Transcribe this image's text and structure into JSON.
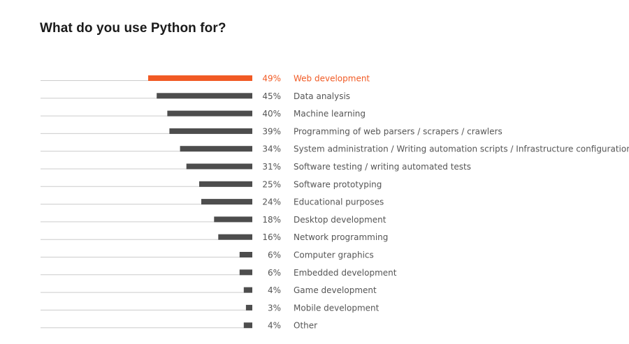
{
  "chart_data": {
    "type": "bar",
    "title": "What do you use Python for?",
    "orientation": "horizontal",
    "value_suffix": "%",
    "highlight_color": "#f15a24",
    "bar_color": "#4d4d4d",
    "label_color": "#555555",
    "baseline_color": "#cccccc",
    "xlim": [
      0,
      49
    ],
    "categories": [
      "Web development",
      "Data analysis",
      "Machine learning",
      "Programming of web parsers / scrapers / crawlers",
      "System administration / Writing automation scripts / Infrastructure configuration",
      "Software testing / writing automated tests",
      "Software prototyping",
      "Educational purposes",
      "Desktop development",
      "Network programming",
      "Computer graphics",
      "Embedded development",
      "Game development",
      "Mobile development",
      "Other"
    ],
    "values": [
      49,
      45,
      40,
      39,
      34,
      31,
      25,
      24,
      18,
      16,
      6,
      6,
      4,
      3,
      4
    ],
    "highlight_index": 0
  }
}
